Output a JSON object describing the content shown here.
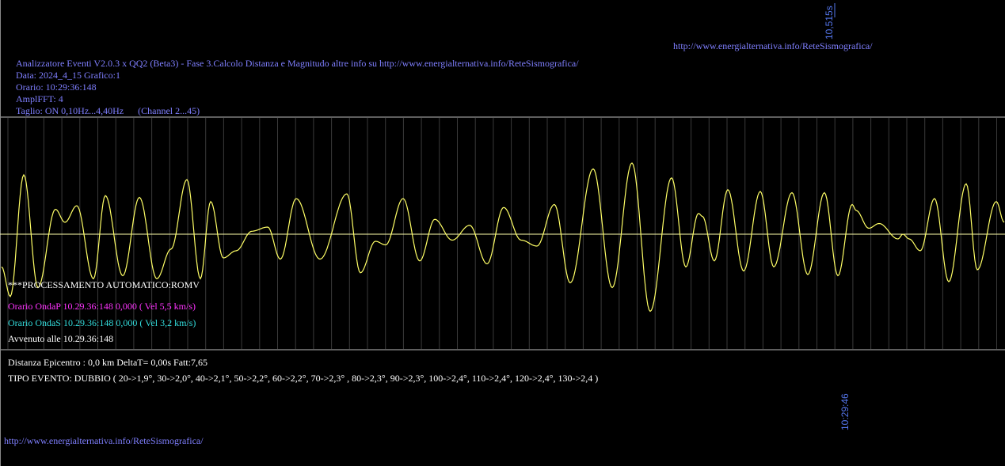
{
  "header": {
    "url_top": "http://www.energialternativa.info/ReteSismografica/",
    "title": "Analizzatore Eventi V2.0.3 x QQ2 (Beta3) - Fase 3.Calcolo Distanza e Magnitudo altre info su http://www.energialternativa.info/ReteSismografica/",
    "data_line": "Data: 2024_4_15 Grafico:1",
    "orario_line": "Orario: 10:29:36:148",
    "amplfft_line": "AmplFFT: 4",
    "taglio_line": "Taglio: ON 0,10Hz...4,40Hz      (Channel 2...45)"
  },
  "time_marks": {
    "top": "10,515s",
    "bottom": "10:29:46"
  },
  "processing": {
    "status": "***PROCESSAMENTO AUTOMATICO:ROMV",
    "onda_p": "Orario OndaP 10.29.36:148  0,000 ( Vel 5,5 km/s)",
    "onda_s": "Orario OndaS 10.29.36:148  0,000 ( Vel 3,2 km/s)",
    "avvenuto": "Avvenuto alle 10.29.36:148"
  },
  "results": {
    "distanza": "Distanza Epicentro : 0,0 km DeltaT= 0,00s  Fatt:7,65",
    "tipo_evento": "TIPO EVENTO: DUBBIO ( 20->1,9°, 30->2,0°, 40->2,1°, 50->2,2°, 60->2,2°, 70->2,3° , 80->2,3°, 90->2,3°, 100->2,4°, 110->2,4°, 120->2,4°, 130->2,4 )"
  },
  "footer": {
    "url_bottom": "http://www.energialternativa.info/ReteSismografica/"
  },
  "colors": {
    "trace": "#ffff66",
    "grid": "#3a3a3a",
    "baseline": "#ffffaa",
    "border": "#bbbbbb"
  },
  "chart_data": {
    "type": "line",
    "series": [
      {
        "peaks": [
          {
            "x": 2,
            "y": -0.55
          },
          {
            "x": 13,
            "y": -1.05
          },
          {
            "x": 30,
            "y": 1.0
          },
          {
            "x": 48,
            "y": -0.9
          },
          {
            "x": 70,
            "y": 0.42
          },
          {
            "x": 82,
            "y": 0.2
          },
          {
            "x": 97,
            "y": 0.48
          },
          {
            "x": 118,
            "y": -0.75
          },
          {
            "x": 133,
            "y": 0.65
          },
          {
            "x": 155,
            "y": -0.7
          },
          {
            "x": 176,
            "y": 0.62
          },
          {
            "x": 198,
            "y": -0.75
          },
          {
            "x": 216,
            "y": -0.25
          },
          {
            "x": 236,
            "y": 0.92
          },
          {
            "x": 253,
            "y": -0.75
          },
          {
            "x": 266,
            "y": 0.55
          },
          {
            "x": 282,
            "y": -0.4
          },
          {
            "x": 298,
            "y": -0.28
          },
          {
            "x": 318,
            "y": 0.05
          },
          {
            "x": 338,
            "y": 0.12
          },
          {
            "x": 354,
            "y": -0.42
          },
          {
            "x": 374,
            "y": 0.6
          },
          {
            "x": 404,
            "y": -0.42
          },
          {
            "x": 438,
            "y": 0.68
          },
          {
            "x": 455,
            "y": -0.65
          },
          {
            "x": 474,
            "y": -0.12
          },
          {
            "x": 487,
            "y": -0.18
          },
          {
            "x": 509,
            "y": 0.6
          },
          {
            "x": 530,
            "y": -0.45
          },
          {
            "x": 549,
            "y": 0.25
          },
          {
            "x": 571,
            "y": -0.1
          },
          {
            "x": 593,
            "y": 0.15
          },
          {
            "x": 615,
            "y": -0.5
          },
          {
            "x": 636,
            "y": 0.45
          },
          {
            "x": 658,
            "y": -0.1
          },
          {
            "x": 678,
            "y": -0.2
          },
          {
            "x": 700,
            "y": 0.5
          },
          {
            "x": 720,
            "y": -0.82
          },
          {
            "x": 749,
            "y": 1.1
          },
          {
            "x": 773,
            "y": -0.9
          },
          {
            "x": 798,
            "y": 1.2
          },
          {
            "x": 821,
            "y": -1.3
          },
          {
            "x": 848,
            "y": 0.95
          },
          {
            "x": 866,
            "y": -0.55
          },
          {
            "x": 882,
            "y": 0.35
          },
          {
            "x": 887,
            "y": 0.3
          },
          {
            "x": 902,
            "y": -0.45
          },
          {
            "x": 919,
            "y": 0.75
          },
          {
            "x": 939,
            "y": -0.62
          },
          {
            "x": 960,
            "y": 0.72
          },
          {
            "x": 977,
            "y": -0.55
          },
          {
            "x": 1000,
            "y": 0.7
          },
          {
            "x": 1020,
            "y": -0.68
          },
          {
            "x": 1041,
            "y": 0.7
          },
          {
            "x": 1058,
            "y": -0.7
          },
          {
            "x": 1076,
            "y": 0.5
          },
          {
            "x": 1081,
            "y": 0.4
          },
          {
            "x": 1097,
            "y": 0.1
          },
          {
            "x": 1110,
            "y": 0.18
          },
          {
            "x": 1134,
            "y": -0.08
          },
          {
            "x": 1140,
            "y": 0.0
          },
          {
            "x": 1148,
            "y": -0.08
          },
          {
            "x": 1162,
            "y": -0.28
          },
          {
            "x": 1180,
            "y": 0.6
          },
          {
            "x": 1198,
            "y": -0.8
          },
          {
            "x": 1220,
            "y": 0.85
          },
          {
            "x": 1234,
            "y": -0.6
          },
          {
            "x": 1258,
            "y": 0.55
          },
          {
            "x": 1268,
            "y": 0.2
          }
        ]
      }
    ]
  }
}
